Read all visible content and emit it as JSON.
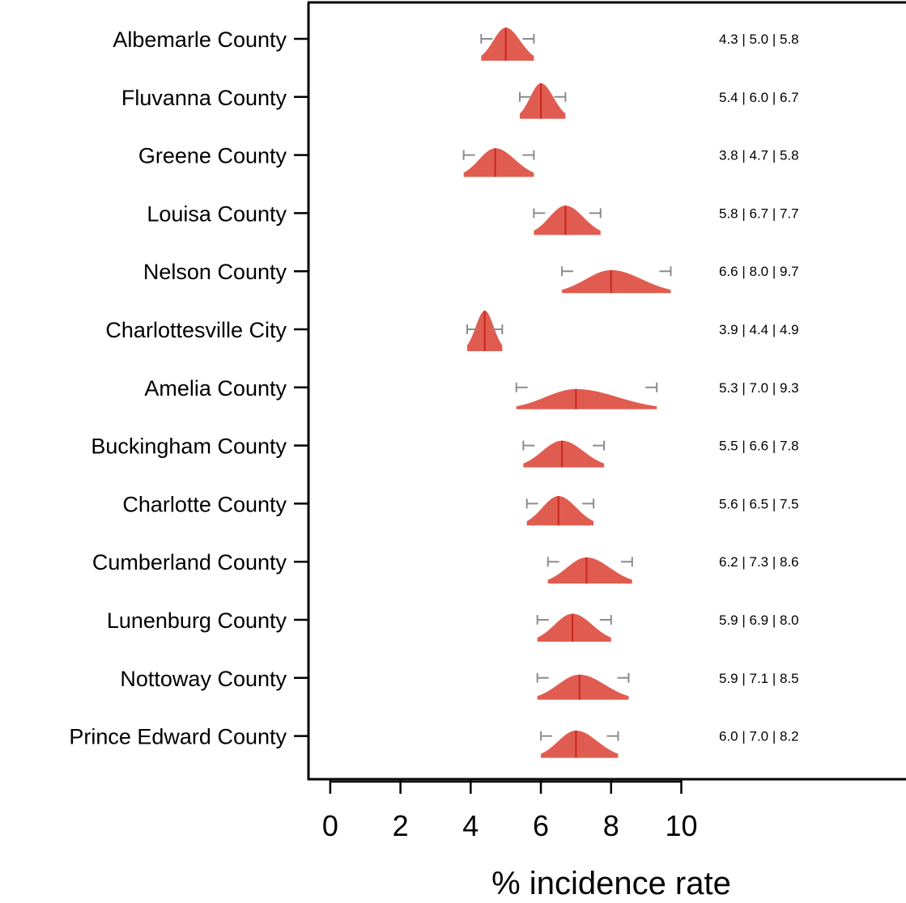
{
  "chart_data": {
    "type": "ridgeline",
    "xlabel": "% incidence rate",
    "categories": [
      "Albemarle County",
      "Fluvanna County",
      "Greene County",
      "Louisa County",
      "Nelson County",
      "Charlottesville City",
      "Amelia County",
      "Buckingham County",
      "Charlotte County",
      "Cumberland County",
      "Lunenburg County",
      "Nottoway County",
      "Prince Edward County"
    ],
    "low": [
      4.3,
      5.4,
      3.8,
      5.8,
      6.6,
      3.9,
      5.3,
      5.5,
      5.6,
      6.2,
      5.9,
      5.9,
      6.0
    ],
    "values": [
      5.0,
      6.0,
      4.7,
      6.7,
      8.0,
      4.4,
      7.0,
      6.6,
      6.5,
      7.3,
      6.9,
      7.1,
      7.0
    ],
    "high": [
      5.8,
      6.7,
      5.8,
      7.7,
      9.7,
      4.9,
      9.3,
      7.8,
      7.5,
      8.6,
      8.0,
      8.5,
      8.2
    ],
    "value_labels": [
      "4.3 | 5.0 | 5.8",
      "5.4 | 6.0 | 6.7",
      "3.8 | 4.7 | 5.8",
      "5.8 | 6.7 | 7.7",
      "6.6 | 8.0 | 9.7",
      "3.9 | 4.4 | 4.9",
      "5.3 | 7.0 | 9.3",
      "5.5 | 6.6 | 7.8",
      "5.6 | 6.5 | 7.5",
      "6.2 | 7.3 | 8.6",
      "5.9 | 6.9 | 8.0",
      "5.9 | 7.1 | 8.5",
      "6.0 | 7.0 | 8.2"
    ],
    "xlim": [
      -0.62,
      16.4
    ],
    "xticks": [
      0,
      2,
      4,
      6,
      8,
      10
    ],
    "color": "#e15c50",
    "median_color": "#c8271d",
    "interval_color": "#8c8c8c"
  }
}
